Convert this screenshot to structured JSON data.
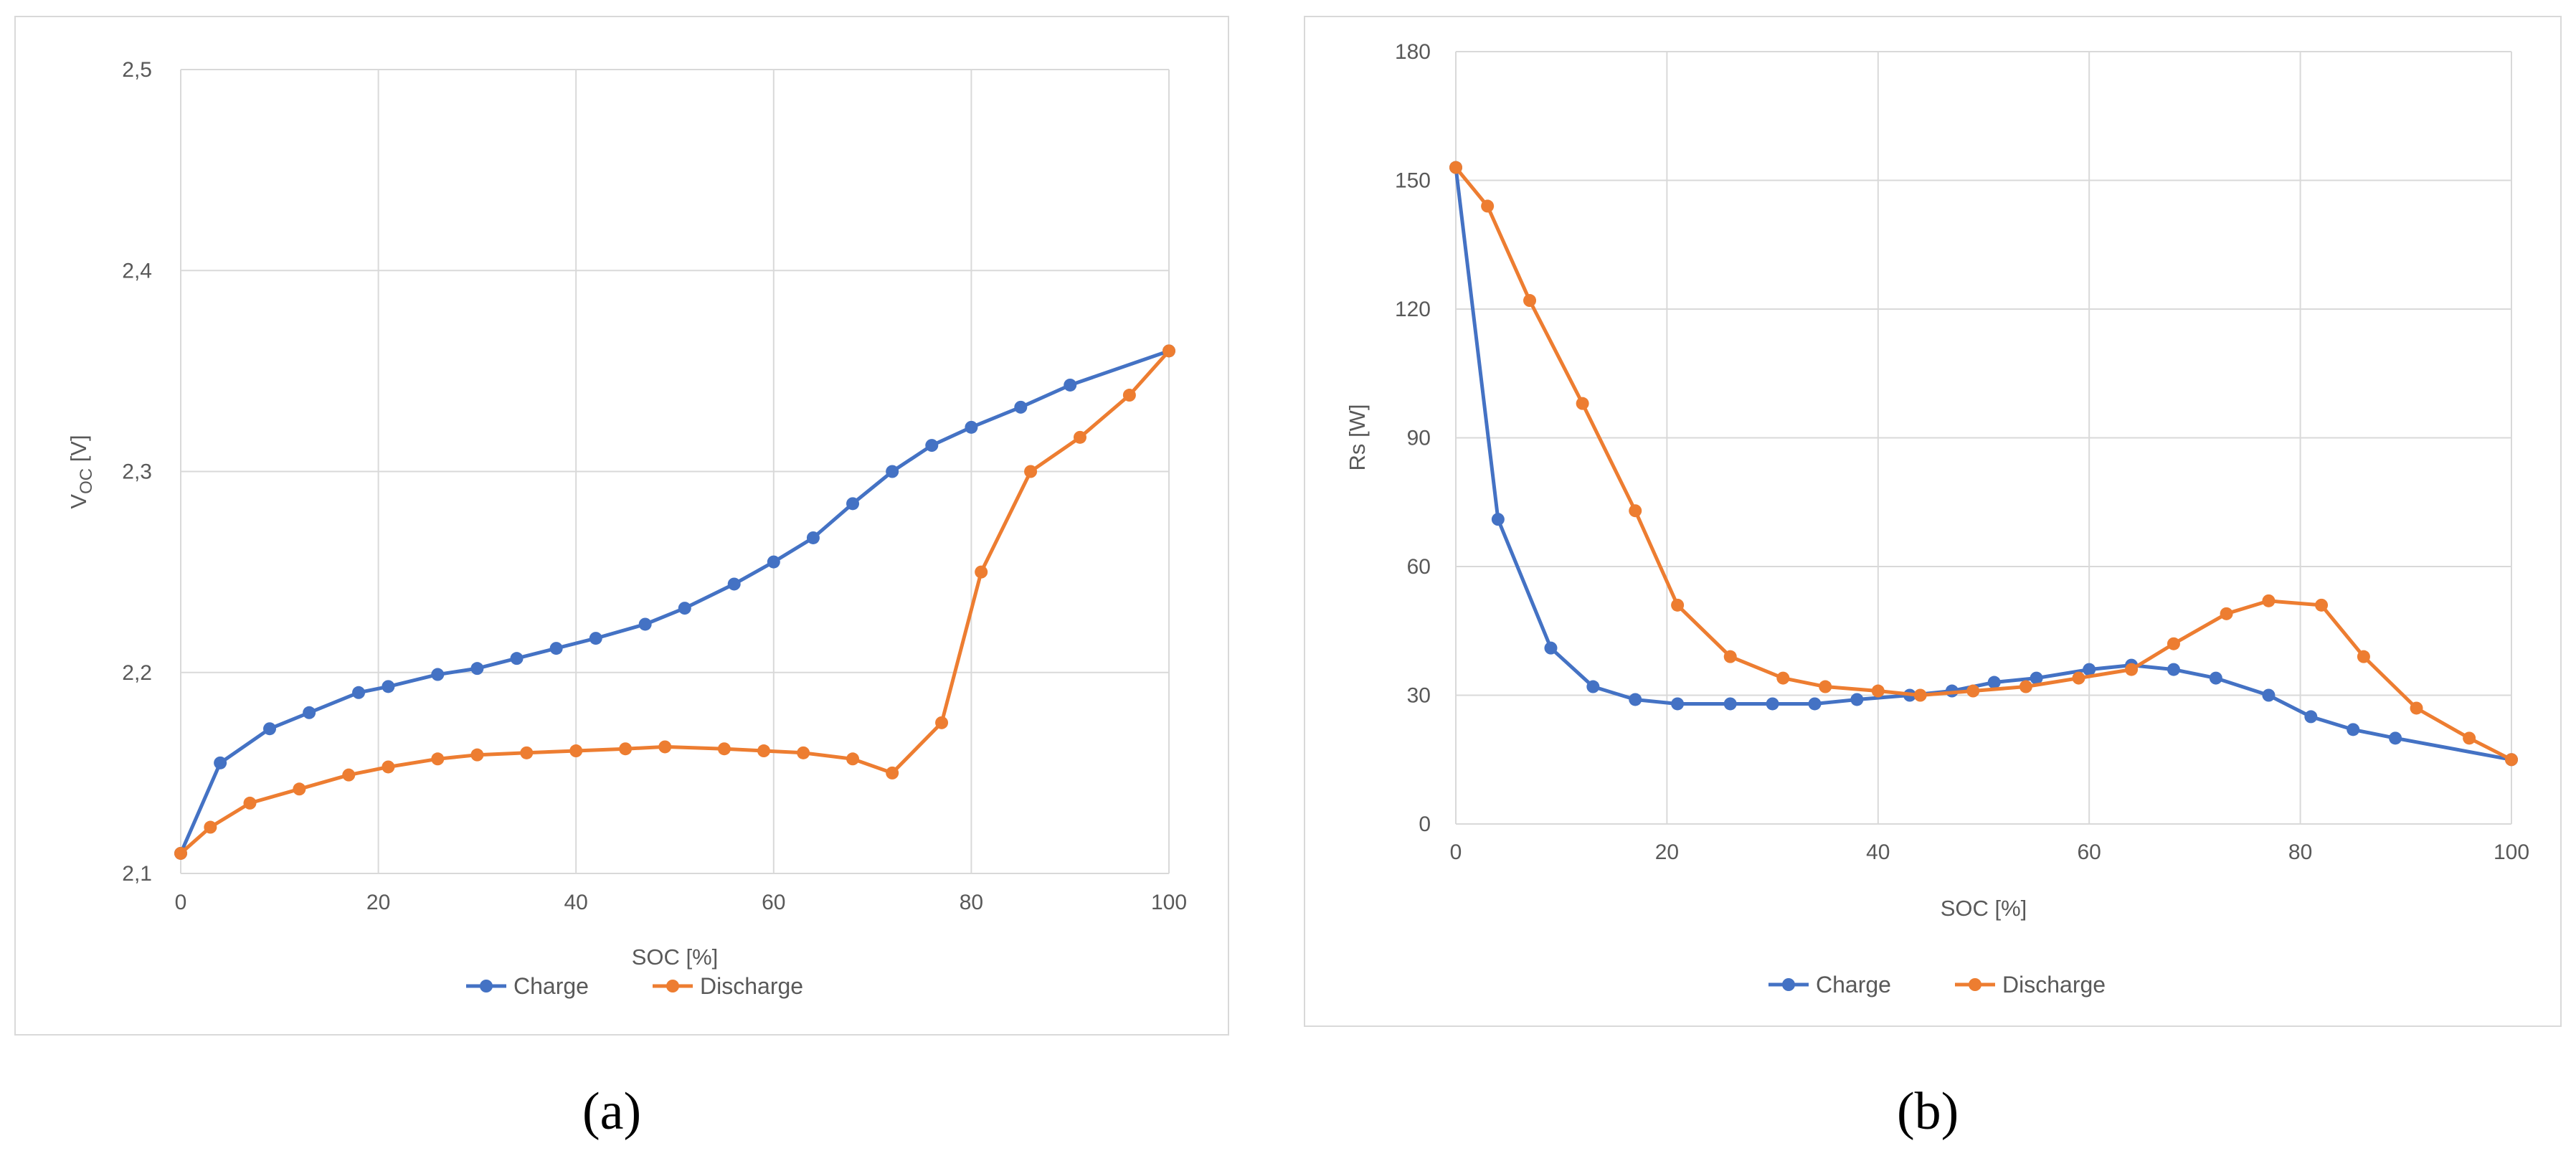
{
  "colors": {
    "charge": "#4472c4",
    "discharge": "#ed7d31",
    "grid": "#d9d9d9",
    "text": "#595959"
  },
  "chart_data": [
    {
      "id": "a",
      "type": "line",
      "caption": "(a)",
      "xlabel": "SOC [%]",
      "ylabel_main": "V",
      "ylabel_sub": "OC",
      "ylabel_unit": " [V]",
      "xlim": [
        0,
        100
      ],
      "ylim": [
        2.1,
        2.5
      ],
      "xticks": [
        0,
        20,
        40,
        60,
        80,
        100
      ],
      "xtick_labels": [
        "0",
        "20",
        "40",
        "60",
        "80",
        "100"
      ],
      "yticks": [
        2.1,
        2.2,
        2.3,
        2.4,
        2.5
      ],
      "ytick_labels": [
        "2,1",
        "2,2",
        "2,3",
        "2,4",
        "2,5"
      ],
      "grid": true,
      "legend_position": "bottom-center",
      "series": [
        {
          "name": "Charge",
          "x": [
            0,
            4,
            9,
            13,
            18,
            21,
            26,
            30,
            34,
            38,
            42,
            47,
            51,
            56,
            60,
            64,
            68,
            72,
            76,
            80,
            85,
            90,
            100
          ],
          "y": [
            2.11,
            2.155,
            2.172,
            2.18,
            2.19,
            2.193,
            2.199,
            2.202,
            2.207,
            2.212,
            2.217,
            2.224,
            2.232,
            2.244,
            2.255,
            2.267,
            2.284,
            2.3,
            2.313,
            2.322,
            2.332,
            2.343,
            2.36
          ]
        },
        {
          "name": "Discharge",
          "x": [
            0,
            3,
            7,
            12,
            17,
            21,
            26,
            30,
            35,
            40,
            45,
            49,
            55,
            59,
            63,
            68,
            72,
            77,
            81,
            86,
            91,
            96,
            100
          ],
          "y": [
            2.11,
            2.123,
            2.135,
            2.142,
            2.149,
            2.153,
            2.157,
            2.159,
            2.16,
            2.161,
            2.162,
            2.163,
            2.162,
            2.161,
            2.16,
            2.157,
            2.15,
            2.175,
            2.25,
            2.3,
            2.317,
            2.338,
            2.36
          ]
        }
      ]
    },
    {
      "id": "b",
      "type": "line",
      "caption": "(b)",
      "xlabel": "SOC [%]",
      "ylabel_main": "Rs [W]",
      "ylabel_sub": "",
      "ylabel_unit": "",
      "xlim": [
        0,
        100
      ],
      "ylim": [
        0,
        180
      ],
      "xticks": [
        0,
        20,
        40,
        60,
        80,
        100
      ],
      "xtick_labels": [
        "0",
        "20",
        "40",
        "60",
        "80",
        "100"
      ],
      "yticks": [
        0,
        30,
        60,
        90,
        120,
        150,
        180
      ],
      "ytick_labels": [
        "0",
        "30",
        "60",
        "90",
        "120",
        "150",
        "180"
      ],
      "grid": true,
      "legend_position": "bottom-center",
      "series": [
        {
          "name": "Charge",
          "x": [
            0,
            4,
            9,
            13,
            17,
            21,
            26,
            30,
            34,
            38,
            43,
            47,
            51,
            55,
            60,
            64,
            68,
            72,
            77,
            81,
            85,
            89,
            100
          ],
          "y": [
            153,
            71,
            41,
            32,
            29,
            28,
            28,
            28,
            28,
            29,
            30,
            31,
            33,
            34,
            36,
            37,
            36,
            34,
            30,
            25,
            22,
            20,
            15
          ]
        },
        {
          "name": "Discharge",
          "x": [
            0,
            3,
            7,
            12,
            17,
            21,
            26,
            31,
            35,
            40,
            44,
            49,
            54,
            59,
            64,
            68,
            73,
            77,
            82,
            86,
            91,
            96,
            100
          ],
          "y": [
            153,
            144,
            122,
            98,
            73,
            51,
            39,
            34,
            32,
            31,
            30,
            31,
            32,
            34,
            36,
            42,
            49,
            52,
            51,
            39,
            27,
            20,
            15
          ]
        }
      ]
    }
  ]
}
